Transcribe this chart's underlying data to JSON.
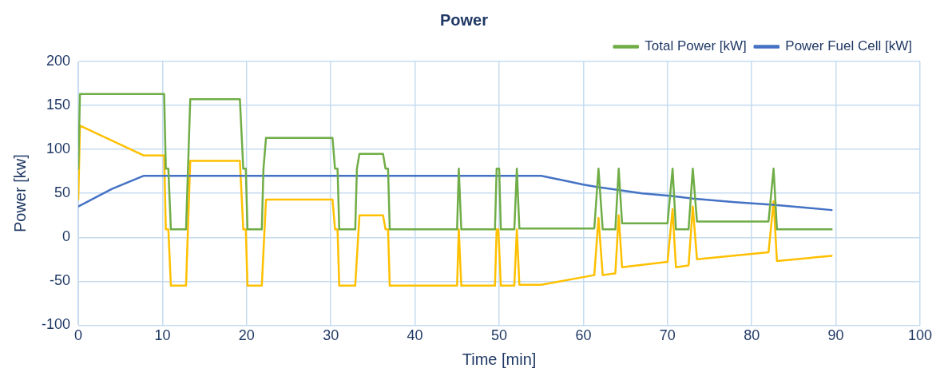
{
  "chart_data": {
    "type": "line",
    "title": "Power",
    "xlabel": "Time [min]",
    "ylabel": "Power [kw]",
    "xlim": [
      0,
      100
    ],
    "xticks": [
      0,
      10,
      20,
      30,
      40,
      50,
      60,
      70,
      80,
      90,
      100
    ],
    "ylim": [
      -100,
      200
    ],
    "yticks": [
      -100,
      -50,
      0,
      50,
      100,
      150,
      200
    ],
    "grid": true,
    "legend": "top right",
    "marker": "none",
    "line_style": "solid",
    "series": [
      {
        "name": "Total Power [kW]",
        "color": "#70ad47",
        "x": [
          0,
          0.2,
          10.2,
          10.4,
          10.7,
          11,
          12.8,
          13.3,
          19.2,
          19.6,
          19.9,
          20.1,
          21.8,
          22,
          22.3,
          30.2,
          30.5,
          30.8,
          31,
          32.9,
          33.1,
          33.4,
          36.2,
          36.5,
          36.8,
          37,
          45,
          45.2,
          45.5,
          49.5,
          49.7,
          50,
          50.2,
          51.8,
          52.1,
          52.4,
          61.3,
          61.8,
          62.3,
          63.8,
          64.2,
          64.6,
          70,
          70.6,
          71,
          72.5,
          73,
          73.5,
          82,
          82.6,
          83,
          89.5
        ],
        "values": [
          78,
          163,
          163,
          78,
          78,
          9,
          9,
          157,
          157,
          78,
          78,
          9,
          9,
          78,
          113,
          113,
          78,
          78,
          9,
          9,
          78,
          95,
          95,
          78,
          78,
          9,
          9,
          78,
          9,
          9,
          78,
          78,
          9,
          9,
          78,
          10,
          10,
          78,
          9,
          9,
          78,
          16,
          16,
          78,
          9,
          9,
          78,
          18,
          18,
          78,
          9,
          9
        ]
      },
      {
        "name": "Power Fuel Cell [kW]",
        "color": "#4472c4",
        "x": [
          0,
          2,
          4,
          6,
          7.8,
          55,
          58,
          60,
          61.8,
          64,
          67,
          70.5,
          73,
          78,
          82.5,
          86,
          89.5
        ],
        "values": [
          35,
          45,
          55,
          63,
          70,
          70,
          64,
          60,
          57,
          54,
          50,
          47,
          44,
          40,
          37,
          34,
          31
        ]
      },
      {
        "color": "#ffc000",
        "x": [
          0,
          0.2,
          7.8,
          10.2,
          10.4,
          10.7,
          11,
          12.8,
          13.3,
          19.2,
          19.6,
          19.9,
          20.1,
          21.8,
          22.3,
          30.2,
          30.5,
          30.8,
          31,
          32.9,
          33.4,
          36.2,
          36.5,
          36.8,
          37,
          45,
          45.2,
          45.5,
          49.5,
          49.7,
          49.9,
          50.2,
          51.8,
          52.1,
          52.4,
          55,
          61.3,
          61.8,
          62.3,
          63.8,
          64.2,
          64.6,
          70,
          70.6,
          71,
          72.5,
          73,
          73.5,
          82,
          82.6,
          83,
          89.5
        ],
        "values": [
          43,
          127,
          93,
          93,
          9,
          9,
          -55,
          -55,
          87,
          87,
          9,
          9,
          -55,
          -55,
          43,
          43,
          9,
          9,
          -55,
          -55,
          25,
          25,
          9,
          9,
          -55,
          -55,
          9,
          -55,
          -55,
          9,
          9,
          -55,
          -55,
          9,
          -54,
          -54,
          -43,
          22,
          -43,
          -41,
          25,
          -34,
          -28,
          32,
          -34,
          -32,
          35,
          -25,
          -17,
          41,
          -27,
          -21
        ]
      }
    ]
  }
}
